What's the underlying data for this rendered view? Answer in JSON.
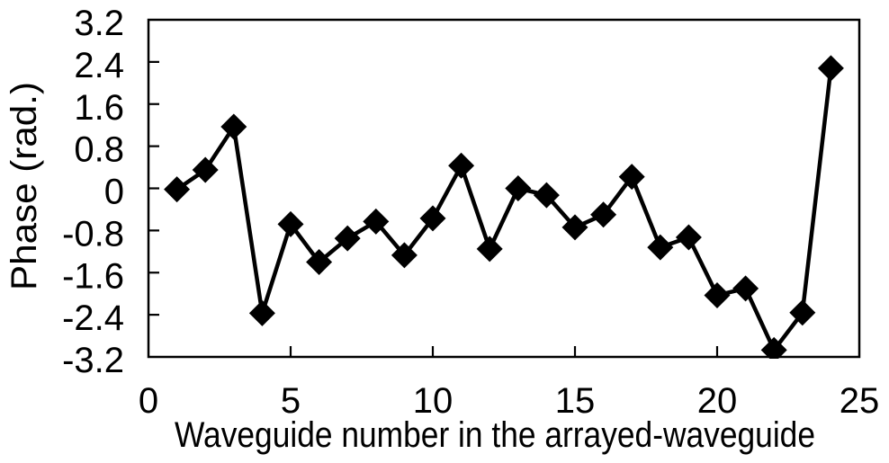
{
  "figure": {
    "background": "#ffffff",
    "foreground": "#000000"
  },
  "chart_data": {
    "type": "line",
    "title": "",
    "xlabel": "Waveguide number in the arrayed-waveguide",
    "ylabel": "Phase (rad.)",
    "x": [
      1,
      2,
      3,
      4,
      5,
      6,
      7,
      8,
      9,
      10,
      11,
      12,
      13,
      14,
      15,
      16,
      17,
      18,
      19,
      20,
      21,
      22,
      23,
      24
    ],
    "y": [
      -0.02,
      0.35,
      1.17,
      -2.37,
      -0.68,
      -1.4,
      -0.95,
      -0.63,
      -1.27,
      -0.57,
      0.43,
      -1.15,
      0.0,
      -0.13,
      -0.74,
      -0.5,
      0.22,
      -1.12,
      -0.93,
      -2.03,
      -1.9,
      -3.07,
      -2.36,
      2.28
    ],
    "xlim": [
      0,
      25
    ],
    "ylim": [
      -3.2,
      3.2
    ],
    "xticks": [
      0,
      5,
      10,
      15,
      20,
      25
    ],
    "xtick_labels": [
      "0",
      "5",
      "10",
      "15",
      "20",
      "25"
    ],
    "yticks": [
      3.2,
      2.4,
      1.6,
      0.8,
      0,
      -0.8,
      -1.6,
      -2.4,
      -3.2
    ],
    "ytick_labels": [
      "3.2",
      "2.4",
      "1.6",
      "0.8",
      "0",
      "-0.8",
      "-1.6",
      "-2.4",
      "-3.2"
    ],
    "grid": false,
    "legend": false,
    "marker": "diamond",
    "line_color": "#000000",
    "marker_color": "#000000",
    "axis_color": "#000000"
  }
}
